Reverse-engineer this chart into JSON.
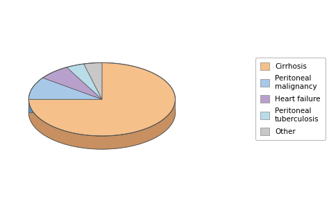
{
  "labels": [
    "Cirrhosis",
    "Peritoneal\nmalignancy",
    "Heart failure",
    "Peritoneal\ntuberculosis",
    "Other"
  ],
  "values": [
    75,
    10,
    7,
    4,
    4
  ],
  "colors": [
    "#F5C08A",
    "#A8C8E8",
    "#B8A0CC",
    "#B8DDE8",
    "#C8C8C8"
  ],
  "side_colors": [
    "#C89060",
    "#6090B8",
    "#8070A0",
    "#80B0C0",
    "#909090"
  ],
  "legend_labels": [
    "Cirrhosis",
    "Peritoneal\nmalignancy",
    "Heart failure",
    "Peritoneal\ntuberculosis",
    "Other"
  ],
  "edge_color": "#666666",
  "background_color": "#FFFFFF",
  "startangle": 90,
  "figure_width": 4.74,
  "figure_height": 2.97,
  "depth": 0.12
}
